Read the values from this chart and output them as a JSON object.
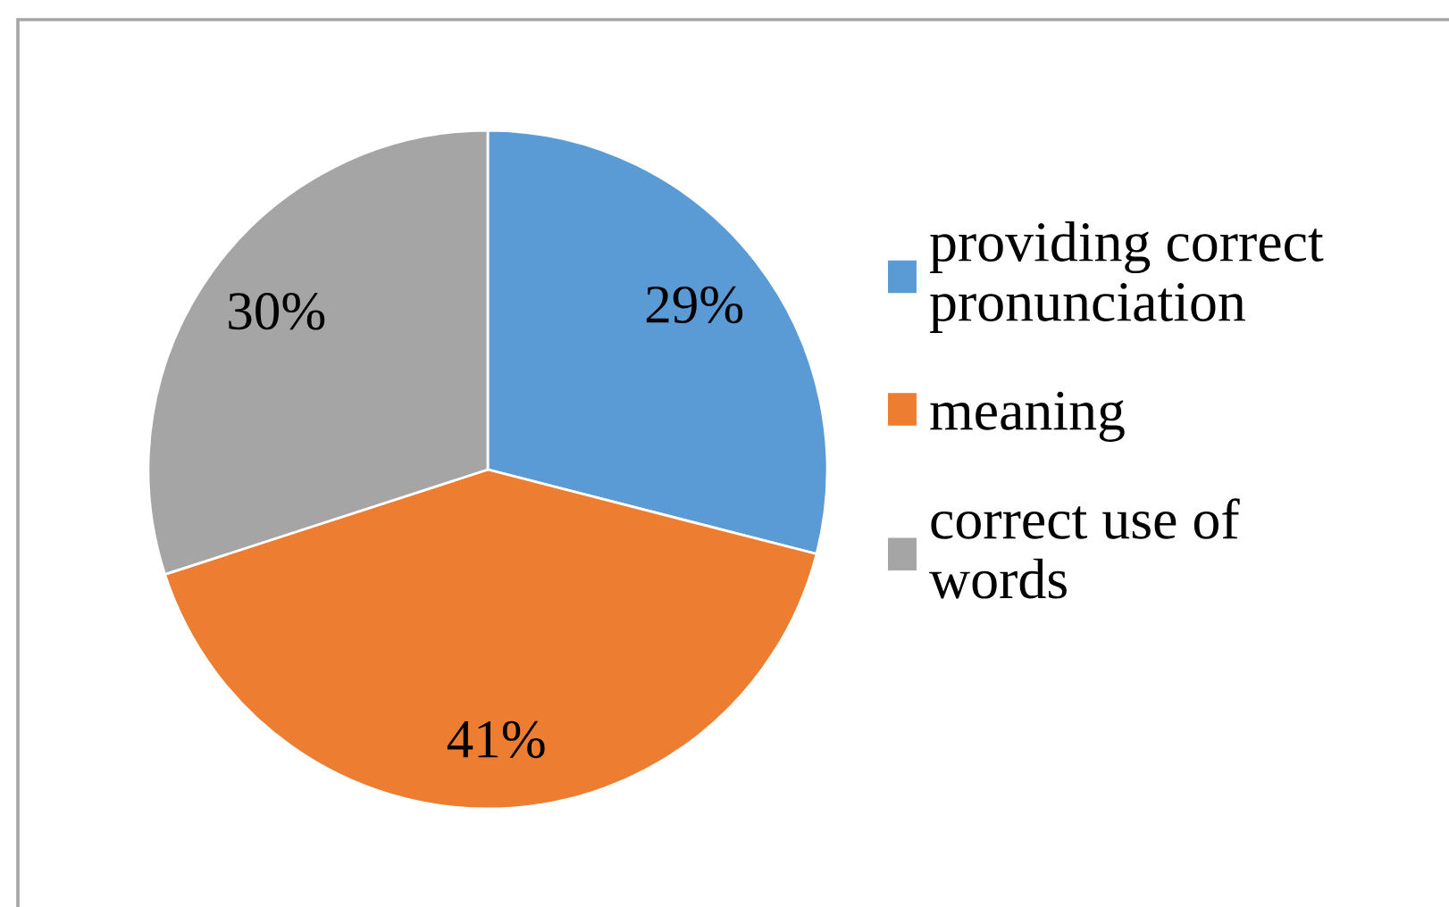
{
  "chart_data": {
    "type": "pie",
    "categories": [
      "providing correct pronunciation",
      "meaning",
      "correct use of words"
    ],
    "values": [
      29,
      41,
      30
    ],
    "colors": [
      "#5b9bd5",
      "#ed7d31",
      "#a5a5a5"
    ],
    "value_labels": [
      "29%",
      "41%",
      "30%"
    ],
    "legend": "right"
  }
}
